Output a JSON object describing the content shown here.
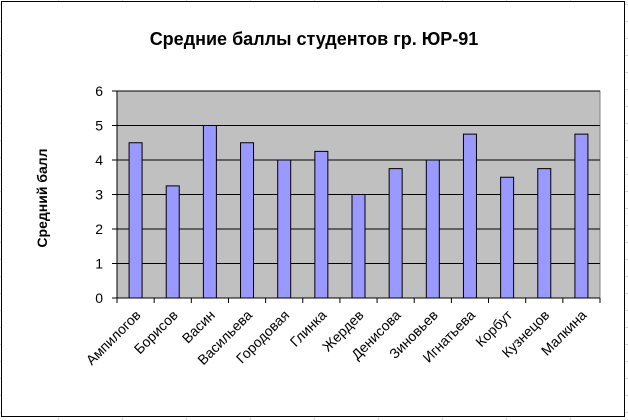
{
  "chart_data": {
    "type": "bar",
    "title": "Средние баллы студентов гр. ЮР-91",
    "ylabel": "Средний балл",
    "xlabel": "",
    "ylim": [
      0,
      6
    ],
    "yticks": [
      0,
      1,
      2,
      3,
      4,
      5,
      6
    ],
    "grid": true,
    "legend": "none",
    "categories": [
      "Ампилогов",
      "Борисов",
      "Васин",
      "Васильева",
      "Городовая",
      "Глинка",
      "Жердев",
      "Денисова",
      "Зиновьев",
      "Игнатьева",
      "Корбут",
      "Кузнецов",
      "Малкина"
    ],
    "values": [
      4.5,
      3.25,
      5,
      4.5,
      4,
      4.25,
      3,
      3.75,
      4,
      4.75,
      3.5,
      3.75,
      4.75
    ],
    "colors": {
      "bar_fill": "#9999ff",
      "bar_stroke": "#000000",
      "plot_area": "#c0c0c0",
      "gridline": "#000000"
    }
  }
}
